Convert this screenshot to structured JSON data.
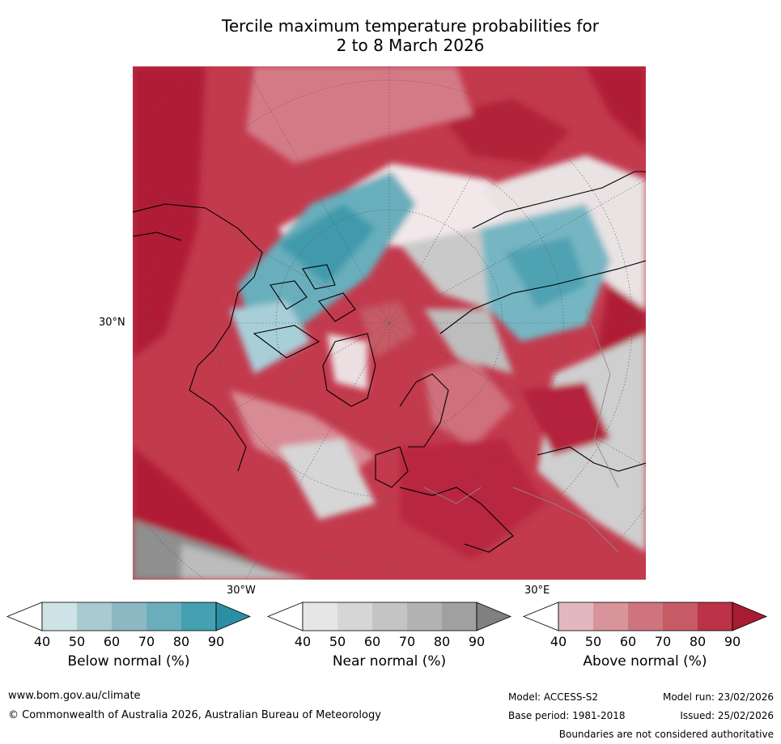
{
  "title_line1": "Tercile maximum temperature probabilities for",
  "title_line2": "2 to 8 March 2026",
  "axis_labels": {
    "lat": "30°N",
    "lon_west": "30°W",
    "lon_east": "30°E"
  },
  "colorbars": [
    {
      "label": "Below normal (%)",
      "ticks": [
        "40",
        "50",
        "60",
        "70",
        "80",
        "90"
      ],
      "colors": [
        "#ffffff",
        "#cde3e8",
        "#a9cad0",
        "#8db8c3",
        "#6aaebb",
        "#45a0b1",
        "#2a8fa3"
      ]
    },
    {
      "label": "Near normal (%)",
      "ticks": [
        "40",
        "50",
        "60",
        "70",
        "80",
        "90"
      ],
      "colors": [
        "#ffffff",
        "#e6e6e6",
        "#d6d6d6",
        "#c4c4c4",
        "#b3b3b3",
        "#a0a0a0",
        "#808080"
      ]
    },
    {
      "label": "Above normal (%)",
      "ticks": [
        "40",
        "50",
        "60",
        "70",
        "80",
        "90"
      ],
      "colors": [
        "#ffffff",
        "#e2b8be",
        "#d8939b",
        "#cf747e",
        "#c65a65",
        "#bc3246",
        "#a81c33"
      ]
    }
  ],
  "footer": {
    "website": "www.bom.gov.au/climate",
    "copyright": "© Commonwealth of Australia 2026, Australian Bureau of Meteorology",
    "model": "Model: ACCESS-S2",
    "base_period": "Base period: 1981-2018",
    "model_run": "Model run: 23/02/2026",
    "issued": "Issued: 25/02/2026",
    "disclaimer": "Boundaries are not considered authoritative"
  }
}
